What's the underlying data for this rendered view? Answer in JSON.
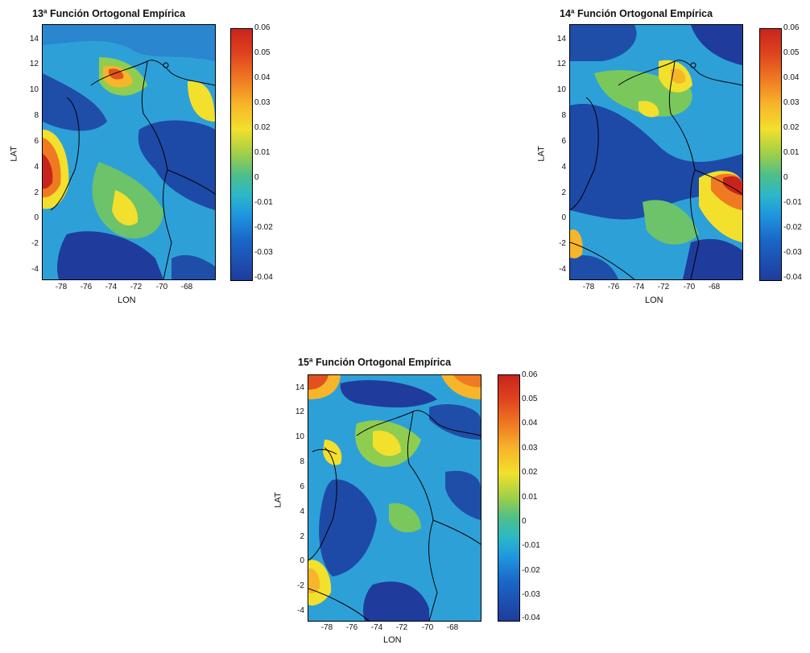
{
  "panels": [
    {
      "title": "13ª Función Ortogonal Empírica",
      "xlabel": "LON",
      "ylabel": "LAT"
    },
    {
      "title": "14ª Función Ortogonal Empírica",
      "xlabel": "LON",
      "ylabel": "LAT"
    },
    {
      "title": "15ª Función Ortogonal Empírica",
      "xlabel": "LON",
      "ylabel": "LAT"
    }
  ],
  "lat_ticks": [
    "14",
    "12",
    "10",
    "8",
    "6",
    "4",
    "2",
    "0",
    "-2",
    "-4"
  ],
  "lon_ticks": [
    "-78",
    "-76",
    "-74",
    "-72",
    "-70",
    "-68"
  ],
  "colorbar_ticks": [
    "0.06",
    "0.05",
    "0.04",
    "0.03",
    "0.02",
    "0.01",
    "0",
    "-0.01",
    "-0.02",
    "-0.03",
    "-0.04"
  ],
  "colors": {
    "high": "#c8241c",
    "mid_high": "#f2e02c",
    "mid": "#2cb8c9",
    "low": "#1f3c9c"
  }
}
